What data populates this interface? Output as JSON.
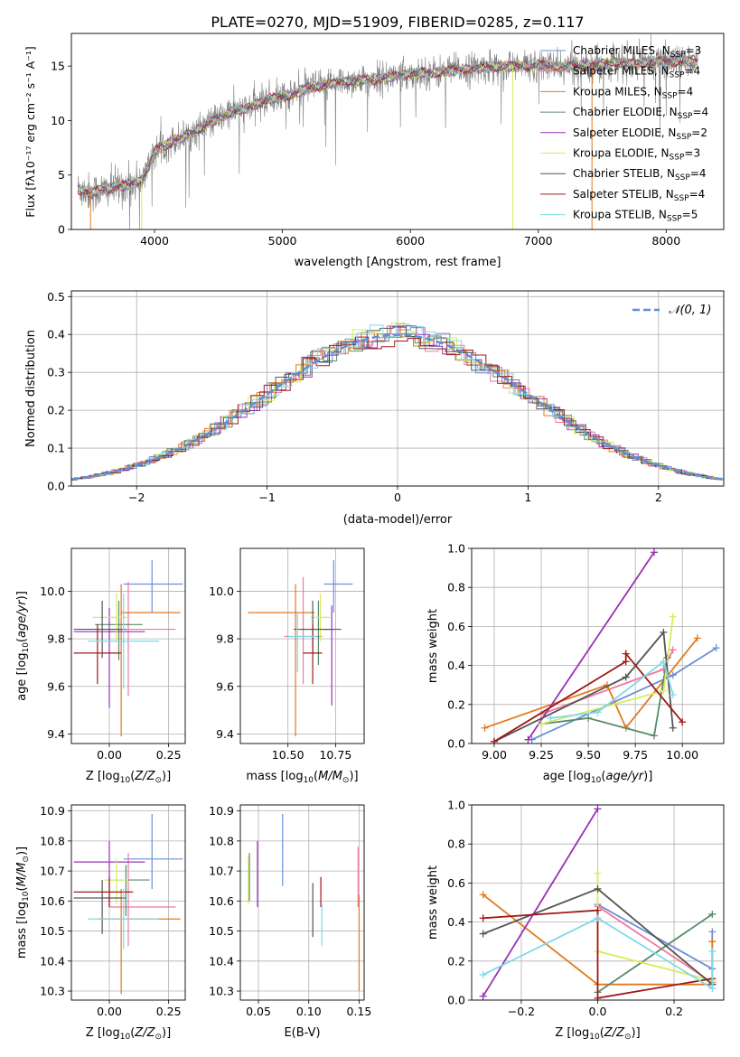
{
  "figure_title": "PLATE=0270, MJD=51909, FIBERID=0285, z=0.117",
  "colors": {
    "Chabrier MILES": "#6a8fd6",
    "Salpeter MILES": "#f0789c",
    "Kroupa MILES": "#e07a1f",
    "Chabrier ELODIE": "#5a8a6a",
    "Salpeter ELODIE": "#9b30b8",
    "Kroupa ELODIE": "#d8ec5a",
    "Chabrier STELIB": "#555555",
    "Salpeter STELIB": "#a01818",
    "Kroupa STELIB": "#80d8e8",
    "normal": "#5b8ed6",
    "data": "#808080"
  },
  "legend_main": {
    "labels": [
      {
        "name": "Chabrier MILES",
        "text": "Chabrier MILES, N",
        "sub": "SSP",
        "val": "=3"
      },
      {
        "name": "Salpeter MILES",
        "text": "Salpeter MILES, N",
        "sub": "SSP",
        "val": "=4"
      },
      {
        "name": "Kroupa MILES",
        "text": "Kroupa MILES, N",
        "sub": "SSP",
        "val": "=4"
      },
      {
        "name": "Chabrier ELODIE",
        "text": "Chabrier ELODIE, N",
        "sub": "SSP",
        "val": "=4"
      },
      {
        "name": "Salpeter ELODIE",
        "text": "Salpeter ELODIE, N",
        "sub": "SSP",
        "val": "=2"
      },
      {
        "name": "Kroupa ELODIE",
        "text": "Kroupa ELODIE, N",
        "sub": "SSP",
        "val": "=3"
      },
      {
        "name": "Chabrier STELIB",
        "text": "Chabrier STELIB, N",
        "sub": "SSP",
        "val": "=4"
      },
      {
        "name": "Salpeter STELIB",
        "text": "Salpeter STELIB, N",
        "sub": "SSP",
        "val": "=4"
      },
      {
        "name": "Kroupa STELIB",
        "text": "Kroupa STELIB, N",
        "sub": "SSP",
        "val": "=5"
      }
    ]
  },
  "chart_data": [
    {
      "id": "spectrum",
      "type": "line",
      "title": "PLATE=0270, MJD=51909, FIBERID=0285, z=0.117",
      "xlabel": "wavelength [Angstrom, rest frame]",
      "ylabel": "Flux [f",
      "ylabel_full": "Flux [fλ10⁻¹⁷ erg cm⁻² s⁻¹ A⁻¹]",
      "xlim": [
        3350,
        8450
      ],
      "ylim": [
        0,
        18
      ],
      "xticks": [
        4000,
        5000,
        6000,
        7000,
        8000
      ],
      "yticks": [
        0,
        5,
        10,
        15
      ],
      "continuum": {
        "x": [
          3400,
          3500,
          3600,
          3700,
          3800,
          3900,
          3950,
          4000,
          4100,
          4200,
          4300,
          4400,
          4500,
          4600,
          4700,
          4800,
          4900,
          5000,
          5100,
          5200,
          5300,
          5400,
          5500,
          5600,
          5700,
          5800,
          5900,
          6000,
          6100,
          6200,
          6300,
          6400,
          6500,
          6600,
          6700,
          6800,
          6900,
          7000,
          7100,
          7200,
          7300,
          7400,
          7500,
          7600,
          7700,
          7800,
          7900,
          8000,
          8100,
          8200
        ],
        "y": [
          3.7,
          3.4,
          3.6,
          3.9,
          4.1,
          4.6,
          5.6,
          7.2,
          7.9,
          8.4,
          8.9,
          9.6,
          10.2,
          10.8,
          11.0,
          11.5,
          12.0,
          12.2,
          12.5,
          13.0,
          13.2,
          13.4,
          13.6,
          13.7,
          13.7,
          14.0,
          14.1,
          14.3,
          14.4,
          14.4,
          14.5,
          14.7,
          14.8,
          14.9,
          15.0,
          15.0,
          15.0,
          15.1,
          15.0,
          14.9,
          15.0,
          15.1,
          15.2,
          15.4,
          15.2,
          15.3,
          15.4,
          15.5,
          15.4,
          15.5
        ]
      }
    },
    {
      "id": "residual_hist",
      "type": "line",
      "xlabel": "(data-model)/error",
      "ylabel": "Normed distribution",
      "xlim": [
        -2.5,
        2.5
      ],
      "ylim": [
        0,
        0.515
      ],
      "xticks": [
        -2,
        -1,
        0,
        1,
        2
      ],
      "yticks": [
        0.0,
        0.1,
        0.2,
        0.3,
        0.4,
        0.5
      ],
      "legend": "𝒩(0, 1)",
      "series": [
        "Chabrier MILES",
        "Salpeter MILES",
        "Kroupa MILES",
        "Chabrier ELODIE",
        "Salpeter ELODIE",
        "Kroupa ELODIE",
        "Chabrier STELIB",
        "Salpeter STELIB",
        "Kroupa STELIB"
      ]
    },
    {
      "id": "age_vs_Z",
      "type": "scatter",
      "xlabel": "Z [log",
      "ylabel": "age  [log",
      "xlim": [
        -0.16,
        0.32
      ],
      "ylim": [
        9.36,
        10.18
      ],
      "xticks": [
        0.0,
        0.25
      ],
      "yticks": [
        9.4,
        9.6,
        9.8,
        10.0
      ],
      "points": [
        {
          "series": "Chabrier MILES",
          "x": 0.18,
          "y": 10.03,
          "xerr": [
            0.12,
            0.13
          ],
          "yerr": [
            0.12,
            0.1
          ]
        },
        {
          "series": "Salpeter MILES",
          "x": 0.08,
          "y": 9.84,
          "xerr": [
            0.08,
            0.2
          ],
          "yerr": [
            0.28,
            0.2
          ]
        },
        {
          "series": "Kroupa MILES",
          "x": 0.05,
          "y": 9.91,
          "xerr": [
            0.0,
            0.25
          ],
          "yerr": [
            0.52,
            0.12
          ]
        },
        {
          "series": "Chabrier ELODIE",
          "x": 0.04,
          "y": 9.86,
          "xerr": [
            0.1,
            0.1
          ],
          "yerr": [
            0.15,
            0.1
          ]
        },
        {
          "series": "Salpeter ELODIE",
          "x": 0.0,
          "y": 9.83,
          "xerr": [
            0.15,
            0.15
          ],
          "yerr": [
            0.32,
            0.1
          ]
        },
        {
          "series": "Kroupa ELODIE",
          "x": 0.03,
          "y": 9.89,
          "xerr": [
            0.1,
            0.05
          ],
          "yerr": [
            0.1,
            0.1
          ]
        },
        {
          "series": "Chabrier STELIB",
          "x": -0.03,
          "y": 9.84,
          "xerr": [
            0.12,
            0.1
          ],
          "yerr": [
            0.12,
            0.12
          ]
        },
        {
          "series": "Salpeter STELIB",
          "x": -0.05,
          "y": 9.74,
          "xerr": [
            0.1,
            0.1
          ],
          "yerr": [
            0.13,
            0.12
          ]
        },
        {
          "series": "Kroupa STELIB",
          "x": 0.06,
          "y": 9.79,
          "xerr": [
            0.15,
            0.15
          ],
          "yerr": [
            0.2,
            0.2
          ]
        }
      ]
    },
    {
      "id": "age_vs_mass",
      "type": "scatter",
      "xlabel": "mass [log",
      "xlim": [
        10.25,
        10.9
      ],
      "ylim": [
        9.36,
        10.18
      ],
      "xticks": [
        10.5,
        10.75
      ],
      "yticks": [
        9.4,
        9.6,
        9.8,
        10.0
      ],
      "points": [
        {
          "series": "Chabrier MILES",
          "x": 10.74,
          "y": 10.03,
          "xerr": [
            0.05,
            0.1
          ],
          "yerr": [
            0.12,
            0.1
          ]
        },
        {
          "series": "Salpeter MILES",
          "x": 10.58,
          "y": 9.81,
          "xerr": [
            0.1,
            0.1
          ],
          "yerr": [
            0.2,
            0.25
          ]
        },
        {
          "series": "Kroupa MILES",
          "x": 10.54,
          "y": 9.91,
          "xerr": [
            0.25,
            0.1
          ],
          "yerr": [
            0.52,
            0.12
          ]
        },
        {
          "series": "Chabrier ELODIE",
          "x": 10.66,
          "y": 9.84,
          "xerr": [
            0.1,
            0.1
          ],
          "yerr": [
            0.15,
            0.12
          ]
        },
        {
          "series": "Salpeter ELODIE",
          "x": 10.73,
          "y": 9.84,
          "xerr": [
            0.05,
            0.05
          ],
          "yerr": [
            0.32,
            0.1
          ]
        },
        {
          "series": "Kroupa ELODIE",
          "x": 10.67,
          "y": 9.89,
          "xerr": [
            0.05,
            0.05
          ],
          "yerr": [
            0.1,
            0.1
          ]
        },
        {
          "series": "Chabrier STELIB",
          "x": 10.63,
          "y": 9.84,
          "xerr": [
            0.1,
            0.1
          ],
          "yerr": [
            0.1,
            0.12
          ]
        },
        {
          "series": "Salpeter STELIB",
          "x": 10.63,
          "y": 9.74,
          "xerr": [
            0.05,
            0.05
          ],
          "yerr": [
            0.13,
            0.12
          ]
        },
        {
          "series": "Kroupa STELIB",
          "x": 10.55,
          "y": 9.81,
          "xerr": [
            0.05,
            0.1
          ],
          "yerr": [
            0.15,
            0.1
          ]
        }
      ]
    },
    {
      "id": "massweight_vs_age",
      "type": "line",
      "xlabel": "age  [log",
      "ylabel": "mass weight",
      "xlim": [
        8.88,
        10.22
      ],
      "ylim": [
        0.0,
        1.0
      ],
      "xticks": [
        9.0,
        9.25,
        9.5,
        9.75,
        10.0
      ],
      "yticks": [
        0.0,
        0.2,
        0.4,
        0.6,
        0.8,
        1.0
      ],
      "series": [
        {
          "name": "Chabrier MILES",
          "x": [
            9.2,
            9.95,
            10.18
          ],
          "y": [
            0.02,
            0.35,
            0.49
          ]
        },
        {
          "name": "Salpeter MILES",
          "x": [
            9.25,
            9.9,
            9.95
          ],
          "y": [
            0.15,
            0.38,
            0.48
          ]
        },
        {
          "name": "Kroupa MILES",
          "x": [
            8.95,
            9.6,
            9.7,
            10.08
          ],
          "y": [
            0.08,
            0.3,
            0.08,
            0.54
          ]
        },
        {
          "name": "Chabrier ELODIE",
          "x": [
            9.25,
            9.5,
            9.85,
            9.92
          ],
          "y": [
            0.1,
            0.13,
            0.04,
            0.44
          ]
        },
        {
          "name": "Salpeter ELODIE",
          "x": [
            9.18,
            9.85
          ],
          "y": [
            0.02,
            0.98
          ]
        },
        {
          "name": "Kroupa ELODIE",
          "x": [
            9.25,
            9.9,
            9.95
          ],
          "y": [
            0.1,
            0.27,
            0.65
          ]
        },
        {
          "name": "Chabrier STELIB",
          "x": [
            9.0,
            9.7,
            9.9,
            9.95
          ],
          "y": [
            0.01,
            0.34,
            0.57,
            0.08
          ]
        },
        {
          "name": "Salpeter STELIB",
          "x": [
            9.0,
            9.7,
            9.7,
            10.0
          ],
          "y": [
            0.01,
            0.42,
            0.46,
            0.11
          ]
        },
        {
          "name": "Kroupa STELIB",
          "x": [
            9.3,
            9.55,
            9.9,
            9.95
          ],
          "y": [
            0.13,
            0.16,
            0.42,
            0.25
          ]
        }
      ]
    },
    {
      "id": "mass_vs_Z",
      "type": "scatter",
      "xlabel": "Z [log",
      "ylabel": "mass [log",
      "xlim": [
        -0.16,
        0.32
      ],
      "ylim": [
        10.27,
        10.92
      ],
      "xticks": [
        0.0,
        0.25
      ],
      "yticks": [
        10.3,
        10.4,
        10.5,
        10.6,
        10.7,
        10.8,
        10.9
      ],
      "points": [
        {
          "series": "Chabrier MILES",
          "x": 0.18,
          "y": 10.74,
          "xerr": [
            0.12,
            0.13
          ],
          "yerr": [
            0.1,
            0.15
          ]
        },
        {
          "series": "Salpeter MILES",
          "x": 0.08,
          "y": 10.58,
          "xerr": [
            0.08,
            0.2
          ],
          "yerr": [
            0.13,
            0.18
          ]
        },
        {
          "series": "Kroupa MILES",
          "x": 0.05,
          "y": 10.54,
          "xerr": [
            0.1,
            0.25
          ],
          "yerr": [
            0.25,
            0.1
          ]
        },
        {
          "series": "Chabrier ELODIE",
          "x": 0.07,
          "y": 10.67,
          "xerr": [
            0.08,
            0.1
          ],
          "yerr": [
            0.12,
            0.05
          ]
        },
        {
          "series": "Salpeter ELODIE",
          "x": 0.0,
          "y": 10.73,
          "xerr": [
            0.15,
            0.15
          ],
          "yerr": [
            0.15,
            0.07
          ]
        },
        {
          "series": "Kroupa ELODIE",
          "x": 0.03,
          "y": 10.67,
          "xerr": [
            0.05,
            0.05
          ],
          "yerr": [
            0.08,
            0.07
          ]
        },
        {
          "series": "Chabrier STELIB",
          "x": -0.03,
          "y": 10.61,
          "xerr": [
            0.12,
            0.1
          ],
          "yerr": [
            0.12,
            0.06
          ]
        },
        {
          "series": "Salpeter STELIB",
          "x": 0.0,
          "y": 10.63,
          "xerr": [
            0.15,
            0.1
          ],
          "yerr": [
            0.05,
            0.05
          ]
        },
        {
          "series": "Kroupa STELIB",
          "x": 0.06,
          "y": 10.54,
          "xerr": [
            0.15,
            0.15
          ],
          "yerr": [
            0.1,
            0.1
          ]
        }
      ]
    },
    {
      "id": "mass_vs_EBV",
      "type": "scatter",
      "xlabel": "E(B-V)",
      "xlim": [
        0.032,
        0.155
      ],
      "ylim": [
        10.27,
        10.92
      ],
      "xticks": [
        0.05,
        0.1,
        0.15
      ],
      "yticks": [
        10.3,
        10.4,
        10.5,
        10.6,
        10.7,
        10.8,
        10.9
      ],
      "points": [
        {
          "series": "Chabrier MILES",
          "x": 0.074,
          "y": 10.77,
          "yerr": [
            0.12,
            0.12
          ]
        },
        {
          "series": "Salpeter MILES",
          "x": 0.149,
          "y": 10.7,
          "yerr": [
            0.12,
            0.08
          ]
        },
        {
          "series": "Kroupa MILES",
          "x": 0.15,
          "y": 10.46,
          "yerr": [
            0.16,
            0.16
          ]
        },
        {
          "series": "Chabrier ELODIE",
          "x": 0.041,
          "y": 10.68,
          "yerr": [
            0.08,
            0.08
          ]
        },
        {
          "series": "Salpeter ELODIE",
          "x": 0.049,
          "y": 10.69,
          "yerr": [
            0.11,
            0.11
          ]
        },
        {
          "series": "Kroupa ELODIE",
          "x": 0.04,
          "y": 10.67,
          "yerr": [
            0.08,
            0.08
          ]
        },
        {
          "series": "Chabrier STELIB",
          "x": 0.104,
          "y": 10.57,
          "yerr": [
            0.09,
            0.09
          ]
        },
        {
          "series": "Salpeter STELIB",
          "x": 0.112,
          "y": 10.63,
          "yerr": [
            0.05,
            0.05
          ]
        },
        {
          "series": "Kroupa STELIB",
          "x": 0.113,
          "y": 10.52,
          "yerr": [
            0.07,
            0.07
          ]
        }
      ]
    },
    {
      "id": "massweight_vs_Z",
      "type": "line",
      "xlabel": "Z [log",
      "ylabel": "mass weight",
      "xlim": [
        -0.33,
        0.33
      ],
      "ylim": [
        0.0,
        1.0
      ],
      "xticks": [
        -0.2,
        0.0,
        0.2
      ],
      "yticks": [
        0.0,
        0.2,
        0.4,
        0.6,
        0.8,
        1.0
      ],
      "series": [
        {
          "name": "Chabrier MILES",
          "x": [
            0.0,
            0.3,
            0.3
          ],
          "y": [
            0.49,
            0.16,
            0.35
          ]
        },
        {
          "name": "Salpeter MILES",
          "x": [
            0.0,
            0.3
          ],
          "y": [
            0.48,
            0.09
          ]
        },
        {
          "name": "Kroupa MILES",
          "x": [
            -0.3,
            0.0,
            0.3,
            0.3
          ],
          "y": [
            0.54,
            0.08,
            0.08,
            0.3
          ]
        },
        {
          "name": "Chabrier ELODIE",
          "x": [
            0.0,
            0.3
          ],
          "y": [
            0.04,
            0.44
          ]
        },
        {
          "name": "Salpeter ELODIE",
          "x": [
            -0.3,
            0.0
          ],
          "y": [
            0.02,
            0.98
          ]
        },
        {
          "name": "Kroupa ELODIE",
          "x": [
            0.0,
            0.0,
            0.3
          ],
          "y": [
            0.65,
            0.25,
            0.1
          ]
        },
        {
          "name": "Chabrier STELIB",
          "x": [
            -0.3,
            0.0,
            0.3
          ],
          "y": [
            0.34,
            0.57,
            0.08
          ]
        },
        {
          "name": "Salpeter STELIB",
          "x": [
            -0.3,
            0.0,
            0.0,
            0.3
          ],
          "y": [
            0.42,
            0.46,
            0.01,
            0.11
          ]
        },
        {
          "name": "Kroupa STELIB",
          "x": [
            -0.3,
            0.0,
            0.3,
            0.3
          ],
          "y": [
            0.13,
            0.42,
            0.06,
            0.25
          ]
        }
      ]
    }
  ]
}
